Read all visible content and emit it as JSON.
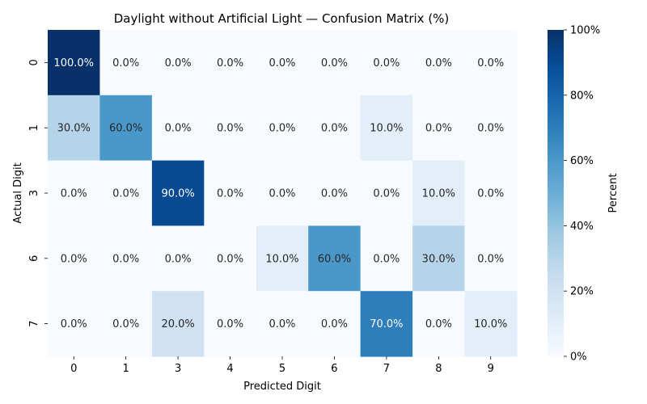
{
  "chart_data": {
    "type": "heatmap",
    "title": "Daylight without Artificial Light — Confusion Matrix (%)",
    "xlabel": "Predicted Digit",
    "ylabel": "Actual Digit",
    "x_categories": [
      "0",
      "1",
      "3",
      "4",
      "5",
      "6",
      "7",
      "8",
      "9"
    ],
    "y_categories": [
      "0",
      "1",
      "3",
      "6",
      "7"
    ],
    "values": [
      [
        100.0,
        0.0,
        0.0,
        0.0,
        0.0,
        0.0,
        0.0,
        0.0,
        0.0
      ],
      [
        30.0,
        60.0,
        0.0,
        0.0,
        0.0,
        0.0,
        10.0,
        0.0,
        0.0
      ],
      [
        0.0,
        0.0,
        90.0,
        0.0,
        0.0,
        0.0,
        0.0,
        10.0,
        0.0
      ],
      [
        0.0,
        0.0,
        0.0,
        0.0,
        10.0,
        60.0,
        0.0,
        30.0,
        0.0
      ],
      [
        0.0,
        0.0,
        20.0,
        0.0,
        0.0,
        0.0,
        70.0,
        0.0,
        10.0
      ]
    ],
    "value_format": "{v}%",
    "colorbar": {
      "label": "Percent",
      "range": [
        0,
        100
      ],
      "ticks": [
        "0%",
        "20%",
        "40%",
        "60%",
        "80%",
        "100%"
      ],
      "colormap": "Blues",
      "low_color": "#f7fbff",
      "high_color": "#08306b"
    },
    "grid": false
  }
}
